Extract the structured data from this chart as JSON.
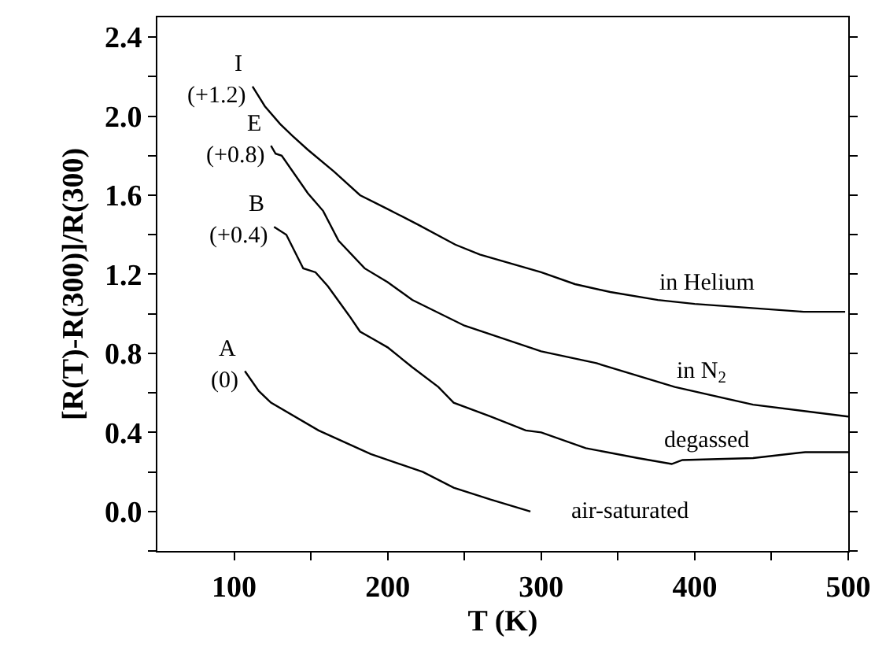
{
  "chart_data": {
    "type": "line",
    "xlabel": "T (K)",
    "ylabel": "[R(T)-R(300)]/R(300)",
    "xlim": [
      50,
      500
    ],
    "ylim": [
      -0.2,
      2.5
    ],
    "xticks": [
      {
        "value": 100,
        "label": "100"
      },
      {
        "value": 150,
        "label": null
      },
      {
        "value": 200,
        "label": "200"
      },
      {
        "value": 250,
        "label": null
      },
      {
        "value": 300,
        "label": "300"
      },
      {
        "value": 350,
        "label": null
      },
      {
        "value": 400,
        "label": "400"
      },
      {
        "value": 450,
        "label": null
      },
      {
        "value": 500,
        "label": "500"
      }
    ],
    "yticks": [
      {
        "value": -0.2,
        "label": null
      },
      {
        "value": 0,
        "label": "0.0"
      },
      {
        "value": 0.2,
        "label": null
      },
      {
        "value": 0.4,
        "label": "0.4"
      },
      {
        "value": 0.6,
        "label": null
      },
      {
        "value": 0.8,
        "label": "0.8"
      },
      {
        "value": 1.0,
        "label": null
      },
      {
        "value": 1.2,
        "label": "1.2"
      },
      {
        "value": 1.4,
        "label": null
      },
      {
        "value": 1.6,
        "label": "1.6"
      },
      {
        "value": 1.8,
        "label": null
      },
      {
        "value": 2.0,
        "label": "2.0"
      },
      {
        "value": 2.2,
        "label": null
      },
      {
        "value": 2.4,
        "label": "2.4"
      }
    ],
    "legend": false,
    "marker": "none",
    "line_style": "solid",
    "series": [
      {
        "name": "in Helium",
        "color": "#000000",
        "x": [
          112,
          120,
          130,
          138,
          148,
          165,
          182,
          200,
          220,
          244,
          260,
          300,
          322,
          345,
          376,
          400,
          471,
          498
        ],
        "values": [
          2.15,
          2.05,
          1.96,
          1.9,
          1.83,
          1.72,
          1.6,
          1.53,
          1.45,
          1.35,
          1.3,
          1.21,
          1.15,
          1.11,
          1.07,
          1.05,
          1.01,
          1.01
        ]
      },
      {
        "name": "in N$_{2}$",
        "color": "#000000",
        "x": [
          124,
          127,
          131,
          148,
          158,
          168,
          185,
          200,
          216,
          250,
          300,
          336,
          387,
          438,
          500
        ],
        "values": [
          1.85,
          1.81,
          1.8,
          1.61,
          1.52,
          1.37,
          1.23,
          1.16,
          1.07,
          0.94,
          0.81,
          0.75,
          0.63,
          0.54,
          0.48
        ]
      },
      {
        "name": "degassed",
        "color": "#000000",
        "x": [
          126,
          134,
          145,
          153,
          161,
          175,
          182,
          191,
          200,
          216,
          233,
          243,
          267,
          290,
          300,
          329,
          363,
          385,
          392,
          438,
          472,
          500
        ],
        "values": [
          1.44,
          1.4,
          1.23,
          1.21,
          1.14,
          0.99,
          0.91,
          0.87,
          0.83,
          0.73,
          0.63,
          0.55,
          0.48,
          0.41,
          0.4,
          0.32,
          0.27,
          0.24,
          0.26,
          0.27,
          0.3,
          0.3
        ]
      },
      {
        "name": "air-saturated",
        "color": "#000000",
        "x": [
          107,
          116,
          124,
          155,
          189,
          223,
          243,
          267,
          293
        ],
        "values": [
          0.71,
          0.61,
          0.55,
          0.41,
          0.29,
          0.2,
          0.12,
          0.06,
          0.0
        ]
      }
    ],
    "annotations": [
      "I",
      "(+1.2)",
      "E",
      "(+0.8)",
      "B",
      "(+0.4)",
      "A",
      "(0)"
    ]
  }
}
